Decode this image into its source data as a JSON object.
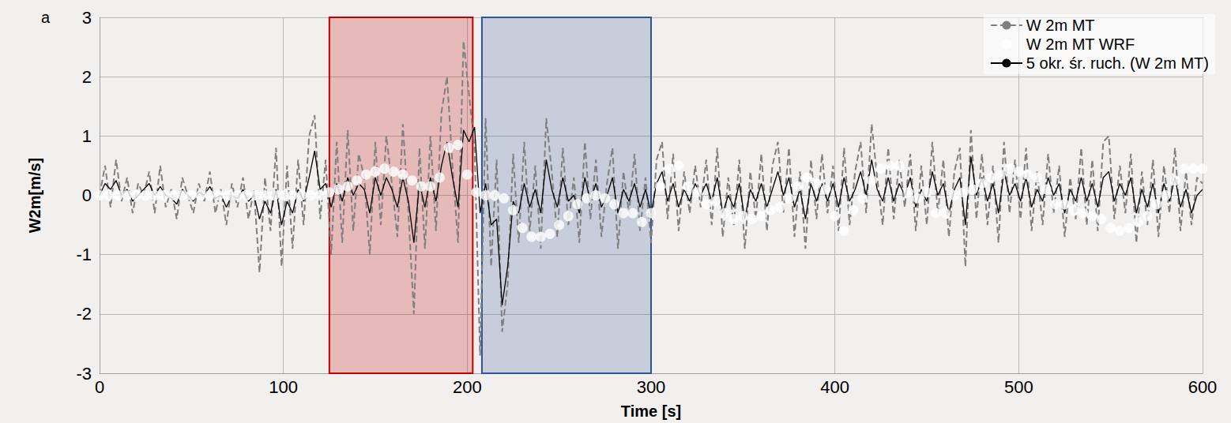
{
  "chart_data": {
    "type": "line",
    "x_label": "Time [s]",
    "y_label": "W2m[m/s]",
    "annotations": [
      {
        "text": "a"
      }
    ],
    "xlim": [
      0,
      600
    ],
    "xticks": [
      0,
      100,
      200,
      300,
      400,
      500,
      600
    ],
    "ylim": [
      -3,
      3
    ],
    "yticks": [
      -3,
      -2,
      -1,
      0,
      1,
      2,
      3
    ],
    "grid": true,
    "legend": "upper right",
    "shaded_regions": [
      {
        "x": [
          125,
          203
        ],
        "color": "#c00000"
      },
      {
        "x": [
          208,
          300
        ],
        "color": "#2f5597"
      }
    ],
    "series": [
      {
        "name": "W 2m MT",
        "type": "line",
        "color": "#808080",
        "line_style": "dashed",
        "marker": "none",
        "x": [
          0,
          3,
          6,
          9,
          12,
          15,
          18,
          21,
          24,
          27,
          30,
          33,
          36,
          39,
          42,
          45,
          48,
          51,
          54,
          57,
          60,
          63,
          66,
          69,
          72,
          75,
          78,
          81,
          84,
          87,
          90,
          93,
          96,
          99,
          102,
          105,
          108,
          111,
          114,
          117,
          120,
          123,
          126,
          129,
          132,
          135,
          138,
          141,
          144,
          147,
          150,
          153,
          156,
          159,
          162,
          165,
          168,
          171,
          174,
          177,
          180,
          183,
          186,
          189,
          192,
          195,
          198,
          201,
          204,
          207,
          210,
          213,
          216,
          219,
          222,
          225,
          228,
          231,
          234,
          237,
          240,
          243,
          246,
          249,
          252,
          255,
          258,
          261,
          264,
          267,
          270,
          273,
          276,
          279,
          282,
          285,
          288,
          291,
          294,
          297,
          300,
          303,
          306,
          309,
          312,
          315,
          318,
          321,
          324,
          327,
          330,
          333,
          336,
          339,
          342,
          345,
          348,
          351,
          354,
          357,
          360,
          363,
          366,
          369,
          372,
          375,
          378,
          381,
          384,
          387,
          390,
          393,
          396,
          399,
          402,
          405,
          408,
          411,
          414,
          417,
          420,
          423,
          426,
          429,
          432,
          435,
          438,
          441,
          444,
          447,
          450,
          453,
          456,
          459,
          462,
          465,
          468,
          471,
          474,
          477,
          480,
          483,
          486,
          489,
          492,
          495,
          498,
          501,
          504,
          507,
          510,
          513,
          516,
          519,
          522,
          525,
          528,
          531,
          534,
          537,
          540,
          543,
          546,
          549,
          552,
          555,
          558,
          561,
          564,
          567,
          570,
          573,
          576,
          579,
          582,
          585,
          588,
          591,
          594,
          597,
          600
        ],
        "values": [
          0,
          0.5,
          -0.2,
          0.6,
          -0.1,
          0.3,
          -0.3,
          0.2,
          0.0,
          0.4,
          -0.3,
          0.5,
          -0.2,
          0.1,
          -0.4,
          0.3,
          0.0,
          -0.3,
          0.2,
          -0.1,
          0.4,
          -0.3,
          0.1,
          -0.5,
          0.2,
          -0.2,
          0.3,
          -0.4,
          0.1,
          -1.3,
          0.3,
          -0.6,
          0.8,
          -1.2,
          0.5,
          -0.9,
          0.6,
          -0.5,
          1.0,
          1.35,
          -0.4,
          0.6,
          -1.0,
          0.9,
          -0.8,
          1.1,
          -0.6,
          0.7,
          0.3,
          -1.0,
          0.9,
          -0.5,
          1.0,
          0.2,
          -0.7,
          1.2,
          -0.3,
          -2.0,
          0.8,
          -0.9,
          1.0,
          -0.6,
          1.4,
          2.0,
          0.5,
          -0.8,
          2.6,
          1.7,
          0.8,
          -2.7,
          1.3,
          -1.2,
          0.6,
          -2.3,
          -1.5,
          0.7,
          -0.8,
          0.9,
          -0.6,
          0.5,
          -0.9,
          1.3,
          0.4,
          -0.7,
          0.8,
          -0.5,
          0.3,
          -0.8,
          0.9,
          -0.4,
          0.6,
          -0.7,
          0.2,
          0.8,
          -0.9,
          0.4,
          -0.3,
          0.7,
          -0.6,
          0.3,
          -0.8,
          0.6,
          0.9,
          -0.4,
          0.7,
          -0.6,
          0.4,
          -0.3,
          0.5,
          -0.2,
          0.6,
          -0.5,
          0.8,
          -0.7,
          0.3,
          -0.5,
          0.6,
          -0.9,
          0.4,
          -0.4,
          0.7,
          -0.6,
          0.5,
          0.9,
          -0.3,
          0.8,
          -0.7,
          0.4,
          -0.9,
          0.6,
          -0.4,
          0.7,
          -0.3,
          0.5,
          -0.6,
          0.8,
          -0.5,
          0.4,
          0.9,
          -0.3,
          1.2,
          0.3,
          -0.5,
          0.8,
          -0.4,
          0.6,
          -0.2,
          0.7,
          -0.6,
          0.5,
          -0.5,
          0.9,
          -0.3,
          0.6,
          -0.7,
          0.4,
          0.8,
          -1.2,
          1.1,
          -0.4,
          0.7,
          -0.5,
          0.5,
          -0.8,
          0.9,
          -0.3,
          0.6,
          -0.4,
          0.8,
          -0.6,
          0.4,
          -0.5,
          0.7,
          -0.3,
          0.5,
          -0.7,
          0.3,
          -0.4,
          0.8,
          -0.5,
          0.6,
          -0.6,
          0.9,
          1.0,
          -0.4,
          0.5,
          -0.3,
          0.7,
          -0.8,
          0.4,
          -0.5,
          0.6,
          -0.7,
          0.5,
          -0.3,
          0.8,
          -0.6,
          0.4,
          -0.5,
          0.3,
          0.2
        ]
      },
      {
        "name": "W 2m MT WRF",
        "type": "scatter",
        "color": "#c00000",
        "marker": "circle",
        "x": [
          0,
          5,
          10,
          15,
          20,
          25,
          30,
          35,
          40,
          45,
          50,
          55,
          60,
          65,
          70,
          75,
          80,
          85,
          90,
          95,
          100,
          105,
          110,
          115,
          120,
          125,
          130,
          135,
          140,
          145,
          150,
          155,
          160,
          165,
          170,
          175,
          180,
          185,
          190,
          195,
          200,
          205,
          210,
          215,
          220,
          225,
          230,
          235,
          240,
          245,
          250,
          255,
          260,
          265,
          270,
          275,
          280,
          285,
          290,
          295,
          300,
          305,
          310,
          315,
          320,
          325,
          330,
          335,
          340,
          345,
          350,
          355,
          360,
          365,
          370,
          375,
          380,
          385,
          390,
          395,
          400,
          405,
          410,
          415,
          420,
          425,
          430,
          435,
          440,
          445,
          450,
          455,
          460,
          465,
          470,
          475,
          480,
          485,
          490,
          495,
          500,
          505,
          510,
          515,
          520,
          525,
          530,
          535,
          540,
          545,
          550,
          555,
          560,
          565,
          570,
          575,
          580,
          585,
          590,
          595,
          600
        ],
        "values": [
          0,
          0,
          0,
          0,
          0,
          0,
          0,
          0,
          0,
          0,
          0,
          0,
          0,
          0,
          0,
          0,
          0,
          0,
          0,
          0,
          0,
          0,
          0,
          0,
          0,
          0.05,
          0.1,
          0.15,
          0.25,
          0.35,
          0.4,
          0.45,
          0.4,
          0.35,
          0.25,
          0.15,
          0.15,
          0.3,
          0.8,
          0.85,
          0.35,
          0.05,
          0.0,
          0.0,
          -0.05,
          -0.25,
          -0.55,
          -0.7,
          -0.7,
          -0.65,
          -0.5,
          -0.35,
          -0.15,
          -0.05,
          0.0,
          -0.05,
          -0.15,
          -0.3,
          -0.3,
          -0.45,
          -0.3,
          0.15,
          0.45,
          0.5,
          0.15,
          0.05,
          -0.15,
          -0.1,
          -0.3,
          -0.4,
          -0.35,
          -0.4,
          -0.35,
          -0.25,
          -0.2,
          -0.05,
          0.15,
          0.3,
          0.2,
          0.1,
          -0.35,
          -0.6,
          -0.25,
          -0.05,
          0.25,
          0.45,
          0.5,
          0.5,
          0.05,
          -0.05,
          0.05,
          -0.3,
          -0.3,
          0.0,
          0.05,
          0.1,
          0.2,
          0.3,
          0.35,
          0.45,
          0.4,
          0.35,
          0.3,
          0.1,
          -0.15,
          -0.15,
          -0.25,
          -0.3,
          -0.35,
          -0.4,
          -0.55,
          -0.6,
          -0.55,
          -0.45,
          -0.35,
          -0.15,
          0.0,
          0.25,
          0.45,
          0.45,
          0.45
        ]
      },
      {
        "name": "5 okr. śr. ruch. (W 2m MT)",
        "type": "line",
        "color": "#000000",
        "line_style": "solid",
        "marker": "none",
        "x": [
          0,
          3,
          6,
          9,
          12,
          15,
          18,
          21,
          24,
          27,
          30,
          33,
          36,
          39,
          42,
          45,
          48,
          51,
          54,
          57,
          60,
          63,
          66,
          69,
          72,
          75,
          78,
          81,
          84,
          87,
          90,
          93,
          96,
          99,
          102,
          105,
          108,
          111,
          114,
          117,
          120,
          123,
          126,
          129,
          132,
          135,
          138,
          141,
          144,
          147,
          150,
          153,
          156,
          159,
          162,
          165,
          168,
          171,
          174,
          177,
          180,
          183,
          186,
          189,
          192,
          195,
          198,
          201,
          204,
          207,
          210,
          213,
          216,
          219,
          222,
          225,
          228,
          231,
          234,
          237,
          240,
          243,
          246,
          249,
          252,
          255,
          258,
          261,
          264,
          267,
          270,
          273,
          276,
          279,
          282,
          285,
          288,
          291,
          294,
          297,
          300,
          303,
          306,
          309,
          312,
          315,
          318,
          321,
          324,
          327,
          330,
          333,
          336,
          339,
          342,
          345,
          348,
          351,
          354,
          357,
          360,
          363,
          366,
          369,
          372,
          375,
          378,
          381,
          384,
          387,
          390,
          393,
          396,
          399,
          402,
          405,
          408,
          411,
          414,
          417,
          420,
          423,
          426,
          429,
          432,
          435,
          438,
          441,
          444,
          447,
          450,
          453,
          456,
          459,
          462,
          465,
          468,
          471,
          474,
          477,
          480,
          483,
          486,
          489,
          492,
          495,
          498,
          501,
          504,
          507,
          510,
          513,
          516,
          519,
          522,
          525,
          528,
          531,
          534,
          537,
          540,
          543,
          546,
          549,
          552,
          555,
          558,
          561,
          564,
          567,
          570,
          573,
          576,
          579,
          582,
          585,
          588,
          591,
          594,
          597,
          600
        ],
        "values": [
          0,
          0.2,
          0.1,
          0.25,
          0.0,
          0.1,
          -0.1,
          0.0,
          0.1,
          0.2,
          0.0,
          0.15,
          0.0,
          -0.05,
          -0.15,
          0.1,
          0.0,
          -0.1,
          0.05,
          0.0,
          0.15,
          -0.05,
          0.0,
          -0.2,
          0.0,
          -0.05,
          0.1,
          -0.1,
          0.0,
          -0.4,
          -0.1,
          -0.3,
          0.1,
          -0.5,
          -0.1,
          -0.3,
          0.1,
          -0.1,
          0.3,
          0.75,
          0.1,
          0.2,
          -0.2,
          0.2,
          -0.1,
          0.3,
          0.0,
          0.2,
          0.1,
          -0.3,
          0.3,
          0.0,
          0.3,
          0.1,
          -0.2,
          0.3,
          -0.1,
          -0.8,
          0.2,
          -0.2,
          0.3,
          -0.1,
          0.5,
          0.9,
          0.3,
          -0.2,
          1.1,
          0.9,
          1.15,
          -0.3,
          0.2,
          -0.5,
          -0.4,
          -1.85,
          -1.2,
          -0.1,
          -0.3,
          0.2,
          -0.2,
          0.1,
          -0.3,
          0.6,
          0.1,
          -0.2,
          0.3,
          -0.1,
          0.0,
          -0.3,
          0.3,
          -0.1,
          0.2,
          -0.2,
          0.0,
          0.3,
          -0.3,
          0.1,
          -0.1,
          0.2,
          -0.2,
          0.1,
          -0.3,
          0.2,
          0.4,
          -0.1,
          0.2,
          -0.2,
          0.1,
          -0.1,
          0.2,
          0.0,
          0.2,
          -0.1,
          0.3,
          -0.3,
          0.0,
          -0.2,
          0.2,
          -0.4,
          0.1,
          -0.1,
          0.2,
          -0.2,
          0.1,
          0.4,
          0.0,
          0.3,
          -0.2,
          0.1,
          -0.4,
          0.2,
          -0.1,
          0.2,
          -0.1,
          0.2,
          -0.2,
          0.3,
          -0.1,
          0.1,
          0.4,
          0.0,
          0.6,
          0.1,
          -0.1,
          0.3,
          -0.1,
          0.2,
          0.0,
          0.3,
          -0.2,
          0.1,
          -0.1,
          0.4,
          0.0,
          0.2,
          -0.3,
          0.1,
          0.3,
          -0.5,
          0.65,
          0.0,
          0.3,
          -0.1,
          0.2,
          -0.3,
          0.4,
          0.0,
          0.2,
          -0.1,
          0.3,
          -0.2,
          0.1,
          -0.1,
          0.3,
          0.0,
          0.2,
          -0.3,
          0.1,
          -0.1,
          0.3,
          -0.1,
          0.2,
          -0.2,
          0.3,
          0.4,
          -0.1,
          0.2,
          0.0,
          0.3,
          -0.3,
          0.1,
          -0.2,
          0.2,
          -0.3,
          0.2,
          -0.1,
          0.3,
          -0.2,
          0.1,
          -0.3,
          0.0,
          0.1
        ]
      }
    ]
  }
}
